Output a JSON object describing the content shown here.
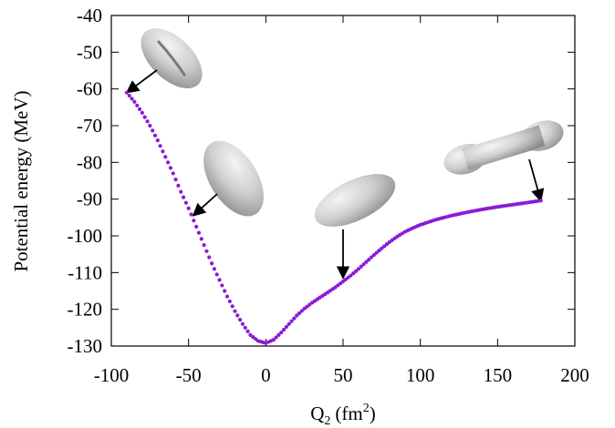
{
  "chart_data": {
    "type": "scatter",
    "xlabel": "Q",
    "xlabel_sub": "2",
    "xlabel_unit_pre": "(fm",
    "xlabel_unit_sup": "2",
    "xlabel_unit_post": ")",
    "ylabel": "Potential energy (MeV)",
    "xlim": [
      -100,
      200
    ],
    "ylim": [
      -130,
      -40
    ],
    "xticks": [
      -100,
      -50,
      0,
      50,
      100,
      150,
      200
    ],
    "yticks": [
      -40,
      -50,
      -60,
      -70,
      -80,
      -90,
      -100,
      -110,
      -120,
      -130
    ],
    "grid": false,
    "legend": "none",
    "marker_color": "#8b1ad6",
    "series": [
      {
        "points": [
          [
            -90,
            -61
          ],
          [
            -85,
            -63.5
          ],
          [
            -80,
            -66.5
          ],
          [
            -75,
            -70
          ],
          [
            -70,
            -74
          ],
          [
            -65,
            -78.5
          ],
          [
            -60,
            -83
          ],
          [
            -55,
            -88
          ],
          [
            -50,
            -92.5
          ],
          [
            -45,
            -97.5
          ],
          [
            -40,
            -102.5
          ],
          [
            -35,
            -107.5
          ],
          [
            -30,
            -112
          ],
          [
            -25,
            -116.5
          ],
          [
            -20,
            -120.5
          ],
          [
            -15,
            -124
          ],
          [
            -10,
            -127
          ],
          [
            -5,
            -128.6
          ],
          [
            0,
            -129.2
          ],
          [
            5,
            -128.3
          ],
          [
            10,
            -126.3
          ],
          [
            15,
            -124
          ],
          [
            20,
            -121.7
          ],
          [
            25,
            -119.8
          ],
          [
            30,
            -118.2
          ],
          [
            35,
            -116.8
          ],
          [
            40,
            -115.4
          ],
          [
            45,
            -114
          ],
          [
            50,
            -112.4
          ],
          [
            55,
            -110.8
          ],
          [
            60,
            -109
          ],
          [
            65,
            -107.1
          ],
          [
            70,
            -105.2
          ],
          [
            75,
            -103.4
          ],
          [
            80,
            -101.7
          ],
          [
            85,
            -100.2
          ],
          [
            90,
            -98.9
          ],
          [
            95,
            -97.9
          ],
          [
            100,
            -97
          ],
          [
            110,
            -95.6
          ],
          [
            120,
            -94.5
          ],
          [
            130,
            -93.6
          ],
          [
            140,
            -92.8
          ],
          [
            150,
            -92.1
          ],
          [
            160,
            -91.5
          ],
          [
            170,
            -90.9
          ],
          [
            178,
            -90.4
          ]
        ]
      }
    ],
    "annotations": [
      {
        "shape": "hourglass-ellipsoid",
        "target": [
          -90,
          -61
        ]
      },
      {
        "shape": "ellipsoid",
        "target": [
          -47,
          -94.5
        ]
      },
      {
        "shape": "elongated-ellipsoid",
        "target": [
          50,
          -111.5
        ]
      },
      {
        "shape": "necked-cylinder",
        "target": [
          178,
          -90.5
        ]
      }
    ]
  }
}
